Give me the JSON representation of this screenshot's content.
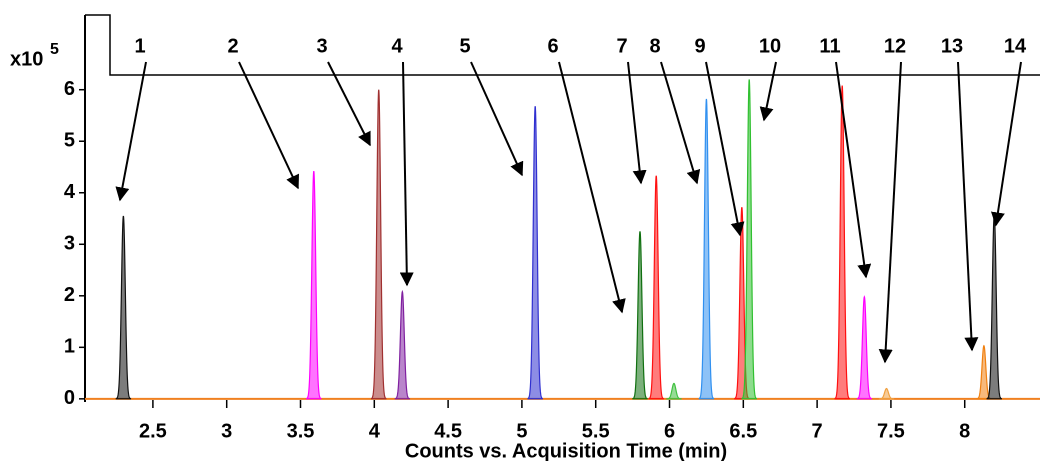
{
  "chart_data": {
    "type": "chromatogram",
    "y_axis_label": "x10",
    "y_axis_exponent": "5",
    "x_axis_label": "Counts vs. Acquisition Time (min)",
    "xlim": [
      2.04,
      8.51
    ],
    "ylim": [
      -0.1,
      7.45
    ],
    "xticks": [
      2.5,
      3,
      3.5,
      4,
      4.5,
      5,
      5.5,
      6,
      6.5,
      7,
      7.5,
      8
    ],
    "yticks": [
      0,
      1,
      2,
      3,
      4,
      5,
      6
    ],
    "baseline_color": "#f08020",
    "peaks": {
      "x": [
        2.3,
        3.59,
        4.03,
        4.19,
        5.09,
        5.8,
        5.91,
        6.03,
        6.25,
        6.49,
        6.54,
        7.17,
        7.32,
        7.47,
        8.13,
        8.2
      ],
      "values": [
        3.55,
        4.42,
        6.0,
        2.08,
        5.68,
        3.25,
        4.33,
        0.3,
        5.82,
        3.72,
        6.2,
        6.08,
        1.98,
        0.2,
        1.03,
        3.57
      ],
      "colors": [
        "#111111",
        "#ff00ff",
        "#a03030",
        "#8020a0",
        "#3030d0",
        "#107010",
        "#ff1010",
        "#40c040",
        "#3090f0",
        "#ff1010",
        "#30c030",
        "#ff1010",
        "#ff00ff",
        "#f0a040",
        "#f08010",
        "#111111"
      ]
    },
    "annotations": [
      "1",
      "2",
      "3",
      "4",
      "5",
      "6",
      "7",
      "8",
      "9",
      "10",
      "11",
      "12",
      "13",
      "14"
    ]
  }
}
